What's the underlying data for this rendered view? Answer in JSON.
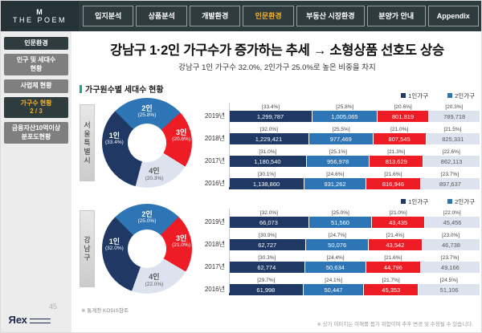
{
  "brand": {
    "monogram": "M",
    "name": "THE POEM",
    "footer_logo": "Rex"
  },
  "nav": {
    "tabs": [
      {
        "label": "입지분석",
        "active": false
      },
      {
        "label": "상품분석",
        "active": false
      },
      {
        "label": "개발환경",
        "active": false
      },
      {
        "label": "인문환경",
        "active": true
      },
      {
        "label": "부동산 시장환경",
        "active": false
      },
      {
        "label": "분양가 안내",
        "active": false
      },
      {
        "label": "Appendix",
        "active": false
      }
    ]
  },
  "sidebar": {
    "items": [
      {
        "lines": [
          "인문환경"
        ],
        "style": "header"
      },
      {
        "lines": [
          "인구 및 세대수",
          "현황"
        ],
        "style": "normal"
      },
      {
        "lines": [
          "사업체 현황"
        ],
        "style": "normal"
      },
      {
        "lines": [
          "가구수 현황",
          "2 / 3"
        ],
        "style": "active"
      },
      {
        "lines": [
          "금융자산10억이상",
          "분포도현황"
        ],
        "style": "normal"
      }
    ]
  },
  "title": "강남구 1·2인 가구수가 증가하는 추세 → 소형상품 선호도 상승",
  "subtitle": "강남구 1인 가구수 32.0%, 2인가구 25.0%로 높은 비중을 차지",
  "section_title": "가구원수별 세대수 현황",
  "legend": {
    "items": [
      {
        "label": "1인가구",
        "color": "#1f3864"
      },
      {
        "label": "2인가구",
        "color": "#2e75b6"
      }
    ]
  },
  "footnotes": {
    "source": "※ 통계청 KOSIS참조",
    "disclaimer": "※ 상기 이미지는 이해를 돕기 위함이며 추후 변경 및 수정될 수 있습니다."
  },
  "page_number": "45",
  "chart_data": [
    {
      "type": "donut+stacked-bar",
      "region": "서울특별시",
      "donut": {
        "segments": [
          {
            "label": "2인",
            "pct": 25.8,
            "color": "#2e75b6",
            "text": "#ffffff",
            "pos": "top"
          },
          {
            "label": "3인",
            "pct": 20.6,
            "color": "#ee1c25",
            "text": "#ffffff",
            "pos": "right"
          },
          {
            "label": "4인",
            "pct": 20.3,
            "color": "#dde3ee",
            "text": "#595959",
            "pos": "bottom"
          },
          {
            "label": "1인",
            "pct": 33.4,
            "color": "#1f3864",
            "text": "#ffffff",
            "pos": "left"
          }
        ]
      },
      "colors": [
        "#1f3864",
        "#2e75b6",
        "#ee1c25",
        "#dde3ee"
      ],
      "value_colors": [
        "#ffffff",
        "#ffffff",
        "#ffffff",
        "#595959"
      ],
      "rows": [
        {
          "year": "2019년",
          "segments": [
            {
              "pct": 33.4,
              "value": "1,299,787"
            },
            {
              "pct": 25.8,
              "value": "1,005,065"
            },
            {
              "pct": 20.6,
              "value": "801,819"
            },
            {
              "pct": 20.3,
              "value": "789,718"
            }
          ]
        },
        {
          "year": "2018년",
          "segments": [
            {
              "pct": 32.0,
              "value": "1,229,421"
            },
            {
              "pct": 25.5,
              "value": "977,469"
            },
            {
              "pct": 21.0,
              "value": "807,545"
            },
            {
              "pct": 21.5,
              "value": "825,331"
            }
          ]
        },
        {
          "year": "2017년",
          "segments": [
            {
              "pct": 31.0,
              "value": "1,180,540"
            },
            {
              "pct": 25.1,
              "value": "956,978"
            },
            {
              "pct": 21.3,
              "value": "813,629"
            },
            {
              "pct": 22.6,
              "value": "862,113"
            }
          ]
        },
        {
          "year": "2016년",
          "segments": [
            {
              "pct": 30.1,
              "value": "1,138,860"
            },
            {
              "pct": 24.6,
              "value": "931,262"
            },
            {
              "pct": 21.6,
              "value": "816,946"
            },
            {
              "pct": 23.7,
              "value": "897,637"
            }
          ]
        }
      ]
    },
    {
      "type": "donut+stacked-bar",
      "region": "강남구",
      "donut": {
        "segments": [
          {
            "label": "2인",
            "pct": 25.0,
            "color": "#2e75b6",
            "text": "#ffffff",
            "pos": "top"
          },
          {
            "label": "3인",
            "pct": 21.0,
            "color": "#ee1c25",
            "text": "#ffffff",
            "pos": "right"
          },
          {
            "label": "4인",
            "pct": 22.0,
            "color": "#dde3ee",
            "text": "#595959",
            "pos": "bottom"
          },
          {
            "label": "1인",
            "pct": 32.0,
            "color": "#1f3864",
            "text": "#ffffff",
            "pos": "left"
          }
        ]
      },
      "colors": [
        "#1f3864",
        "#2e75b6",
        "#ee1c25",
        "#dde3ee"
      ],
      "value_colors": [
        "#ffffff",
        "#ffffff",
        "#ffffff",
        "#595959"
      ],
      "rows": [
        {
          "year": "2019년",
          "segments": [
            {
              "pct": 32.0,
              "value": "66,073"
            },
            {
              "pct": 25.0,
              "value": "51,560"
            },
            {
              "pct": 21.0,
              "value": "43,435"
            },
            {
              "pct": 22.0,
              "value": "45,456"
            }
          ]
        },
        {
          "year": "2018년",
          "segments": [
            {
              "pct": 30.9,
              "value": "62,727"
            },
            {
              "pct": 24.7,
              "value": "50,076"
            },
            {
              "pct": 21.4,
              "value": "43,542"
            },
            {
              "pct": 23.0,
              "value": "46,738"
            }
          ]
        },
        {
          "year": "2017년",
          "segments": [
            {
              "pct": 30.3,
              "value": "62,774"
            },
            {
              "pct": 24.4,
              "value": "50,634"
            },
            {
              "pct": 21.6,
              "value": "44,796"
            },
            {
              "pct": 23.7,
              "value": "49,166"
            }
          ]
        },
        {
          "year": "2016년",
          "segments": [
            {
              "pct": 29.7,
              "value": "61,998"
            },
            {
              "pct": 24.1,
              "value": "50,447"
            },
            {
              "pct": 21.7,
              "value": "45,353"
            },
            {
              "pct": 24.5,
              "value": "51,106"
            }
          ]
        }
      ]
    }
  ]
}
